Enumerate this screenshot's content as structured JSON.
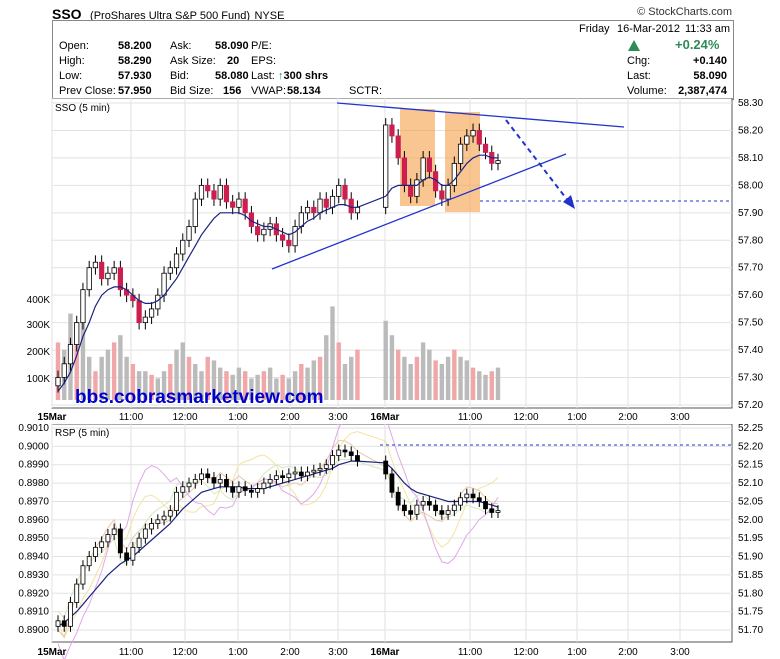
{
  "header": {
    "symbol": "SSO",
    "name": "(ProShares Ultra S&P 500 Fund)",
    "exchange": "NYSE",
    "brand": "© StockCharts.com",
    "day": "Friday",
    "date": "16-Mar-2012",
    "time": "11:33 am"
  },
  "quote": {
    "open_label": "Open:",
    "open": "58.200",
    "high_label": "High:",
    "high": "58.290",
    "low_label": "Low:",
    "low": "57.930",
    "prev_label": "Prev Close:",
    "prev": "57.950",
    "ask_label": "Ask:",
    "ask": "58.090",
    "asksize_label": "Ask Size:",
    "asksize": "20",
    "bid_label": "Bid:",
    "bid": "58.080",
    "bidsize_label": "Bid Size:",
    "bidsize": "156",
    "pe_label": "P/E:",
    "eps_label": "EPS:",
    "last_label": "Last:",
    "last_trade": "300 shrs",
    "vwap_label": "VWAP:",
    "vwap": "58.134",
    "sctr_label": "SCTR:",
    "pct_change": "+0.24%",
    "chg_label": "Chg:",
    "chg": "+0.140",
    "last2_label": "Last:",
    "last": "58.090",
    "volume_label": "Volume:",
    "volume": "2,387,474",
    "up_color": "#2e8b57"
  },
  "watermark": "bbs.cobrasmarketview.com",
  "upper_panel": {
    "label": "SSO (5 min)",
    "right_ticks": [
      "58.30",
      "58.20",
      "58.10",
      "58.00",
      "57.90",
      "57.80",
      "57.70",
      "57.60",
      "57.50",
      "57.40",
      "57.30",
      "57.20"
    ],
    "volume_ticks": [
      "400K",
      "300K",
      "200K",
      "100K"
    ],
    "x_ticks": [
      "15Mar",
      "11:00",
      "12:00",
      "1:00",
      "2:00",
      "3:00",
      "16Mar",
      "11:00",
      "12:00",
      "1:00",
      "2:00",
      "3:00"
    ]
  },
  "lower_panel": {
    "label": "RSP (5 min)",
    "left_ticks": [
      "0.9010",
      "0.9000",
      "0.8990",
      "0.8980",
      "0.8970",
      "0.8960",
      "0.8950",
      "0.8940",
      "0.8930",
      "0.8920",
      "0.8910",
      "0.8900"
    ],
    "right_ticks": [
      "52.25",
      "52.20",
      "52.15",
      "52.10",
      "52.05",
      "52.00",
      "51.95",
      "51.90",
      "51.85",
      "51.80",
      "51.75",
      "51.70"
    ],
    "x_ticks": [
      "15Mar",
      "11:00",
      "12:00",
      "1:00",
      "2:00",
      "3:00",
      "16Mar",
      "11:00",
      "12:00",
      "1:00",
      "2:00",
      "3:00"
    ]
  },
  "chart_data": [
    {
      "type": "candlestick",
      "title": "SSO (5 min)",
      "y_range": [
        57.2,
        58.3
      ],
      "series": [
        {
          "name": "SSO",
          "close": [
            57.3,
            57.35,
            57.42,
            57.5,
            57.62,
            57.7,
            57.72,
            57.66,
            57.68,
            57.7,
            57.62,
            57.6,
            57.58,
            57.5,
            57.52,
            57.55,
            57.6,
            57.68,
            57.7,
            57.75,
            57.8,
            57.85,
            57.95,
            58.0,
            57.98,
            57.95,
            58.0,
            57.94,
            57.92,
            57.95,
            57.9,
            57.85,
            57.82,
            57.84,
            57.86,
            57.82,
            57.8,
            57.78,
            57.85,
            57.9,
            57.92,
            57.9,
            57.95,
            57.92,
            57.96,
            58.0,
            57.95,
            57.9,
            57.92,
            58.22,
            58.18,
            58.1,
            58.0,
            57.96,
            58.02,
            58.1,
            58.05,
            57.98,
            57.95,
            58.0,
            58.08,
            58.15,
            58.18,
            58.2,
            58.15,
            58.12,
            58.08,
            58.09
          ]
        },
        {
          "name": "SMA",
          "values": [
            57.25,
            57.28,
            57.32,
            57.38,
            57.45,
            57.5,
            57.56,
            57.6,
            57.62,
            57.63,
            57.63,
            57.62,
            57.6,
            57.58,
            57.57,
            57.57,
            57.58,
            57.6,
            57.63,
            57.66,
            57.7,
            57.74,
            57.78,
            57.82,
            57.85,
            57.88,
            57.9,
            57.9,
            57.9,
            57.9,
            57.89,
            57.87,
            57.86,
            57.85,
            57.85,
            57.84,
            57.83,
            57.82,
            57.83,
            57.85,
            57.87,
            57.88,
            57.9,
            57.91,
            57.92,
            57.93,
            57.93,
            57.92,
            57.92,
            57.96,
            57.99,
            58.0,
            58.0,
            58.0,
            58.0,
            58.02,
            58.03,
            58.02,
            58.0,
            58.0,
            58.02,
            58.05,
            58.08,
            58.1,
            58.11,
            58.11,
            58.1,
            58.1
          ]
        }
      ],
      "volume": [
        80,
        70,
        120,
        90,
        150,
        60,
        40,
        60,
        70,
        80,
        90,
        60,
        50,
        40,
        40,
        35,
        30,
        40,
        50,
        70,
        80,
        60,
        50,
        40,
        60,
        55,
        45,
        40,
        35,
        45,
        40,
        30,
        35,
        40,
        45,
        30,
        35,
        30,
        40,
        50,
        45,
        55,
        60,
        90,
        130,
        80,
        50,
        60,
        70,
        110,
        90,
        70,
        60,
        50,
        60,
        80,
        70,
        55,
        50,
        60,
        70,
        60,
        55,
        45,
        40,
        35,
        40,
        45
      ]
    },
    {
      "type": "line",
      "title": "RSP (5 min)",
      "y_range": [
        0.89,
        0.901
      ],
      "series": [
        {
          "name": "RSP",
          "values": [
            0.8905,
            0.8902,
            0.8915,
            0.8925,
            0.8935,
            0.894,
            0.8945,
            0.8948,
            0.8952,
            0.8955,
            0.8942,
            0.8938,
            0.8945,
            0.895,
            0.8955,
            0.8958,
            0.896,
            0.8962,
            0.8965,
            0.8975,
            0.8978,
            0.898,
            0.8982,
            0.8985,
            0.8983,
            0.898,
            0.8982,
            0.8978,
            0.8975,
            0.8978,
            0.8976,
            0.8975,
            0.8977,
            0.898,
            0.8982,
            0.8984,
            0.8983,
            0.8985,
            0.8986,
            0.8984,
            0.8986,
            0.8987,
            0.8988,
            0.899,
            0.8995,
            0.8998,
            0.8997,
            0.8995,
            0.8992,
            0.8985,
            0.8975,
            0.8968,
            0.8965,
            0.8963,
            0.8968,
            0.897,
            0.8968,
            0.8965,
            0.8963,
            0.8965,
            0.8968,
            0.8972,
            0.8974,
            0.8972,
            0.897,
            0.8966,
            0.8964,
            0.8965
          ]
        },
        {
          "name": "SMA",
          "values": [
            0.8902,
            0.8904,
            0.8907,
            0.891,
            0.8914,
            0.8918,
            0.8922,
            0.8926,
            0.893,
            0.8933,
            0.8936,
            0.8938,
            0.894,
            0.8943,
            0.8946,
            0.8949,
            0.8952,
            0.8955,
            0.8958,
            0.8962,
            0.8966,
            0.8969,
            0.8972,
            0.8975,
            0.8976,
            0.8977,
            0.8978,
            0.8978,
            0.8978,
            0.8978,
            0.8977,
            0.8977,
            0.8977,
            0.8977,
            0.8978,
            0.8979,
            0.898,
            0.8981,
            0.8982,
            0.8983,
            0.8984,
            0.8985,
            0.8986,
            0.8987,
            0.8988,
            0.899,
            0.8991,
            0.8992,
            0.8992,
            0.8991,
            0.8988,
            0.8984,
            0.898,
            0.8977,
            0.8975,
            0.8974,
            0.8973,
            0.8972,
            0.8971,
            0.897,
            0.897,
            0.897,
            0.897,
            0.897,
            0.897,
            0.8969,
            0.8968,
            0.8967
          ]
        }
      ]
    }
  ]
}
